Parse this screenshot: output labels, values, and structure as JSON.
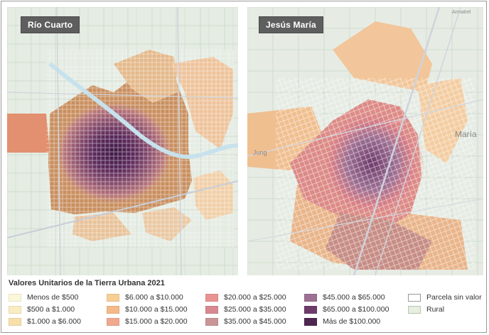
{
  "maps": [
    {
      "id": "rio-cuarto",
      "label": "Río Cuarto"
    },
    {
      "id": "jesus-maria",
      "label": "Jesús María"
    }
  ],
  "map_text": {
    "street_label_1": "Jung",
    "street_label_2": "María",
    "street_label_3": "Armatrel"
  },
  "legend": {
    "title": "Valores Unitarios de la Tierra Urbana 2021",
    "items": [
      {
        "label": "Menos de $500",
        "color": "#fbf7d9"
      },
      {
        "label": "$500 a $1.000",
        "color": "#faecc3"
      },
      {
        "label": "$1.000 a $6.000",
        "color": "#f8dfaa"
      },
      {
        "label": "$6.000 a $10.000",
        "color": "#f7cf96"
      },
      {
        "label": "$10.000 a $15.000",
        "color": "#f4b987"
      },
      {
        "label": "$15.000 a $20.000",
        "color": "#f0a88e"
      },
      {
        "label": "$20.000 a $25.000",
        "color": "#e99493"
      },
      {
        "label": "$25.000 a $35.000",
        "color": "#d7898f"
      },
      {
        "label": "$35.000 a $45.000",
        "color": "#c99597"
      },
      {
        "label": "$45.000 a $65.000",
        "color": "#9c7193"
      },
      {
        "label": "$65.000 a $100.000",
        "color": "#6e3b6b"
      },
      {
        "label": "Más de $100.000",
        "color": "#4f2650"
      },
      {
        "label": "Parcela sin valor",
        "color": "#ffffff"
      },
      {
        "label": "Rural",
        "color": "#e7efe2"
      }
    ]
  }
}
